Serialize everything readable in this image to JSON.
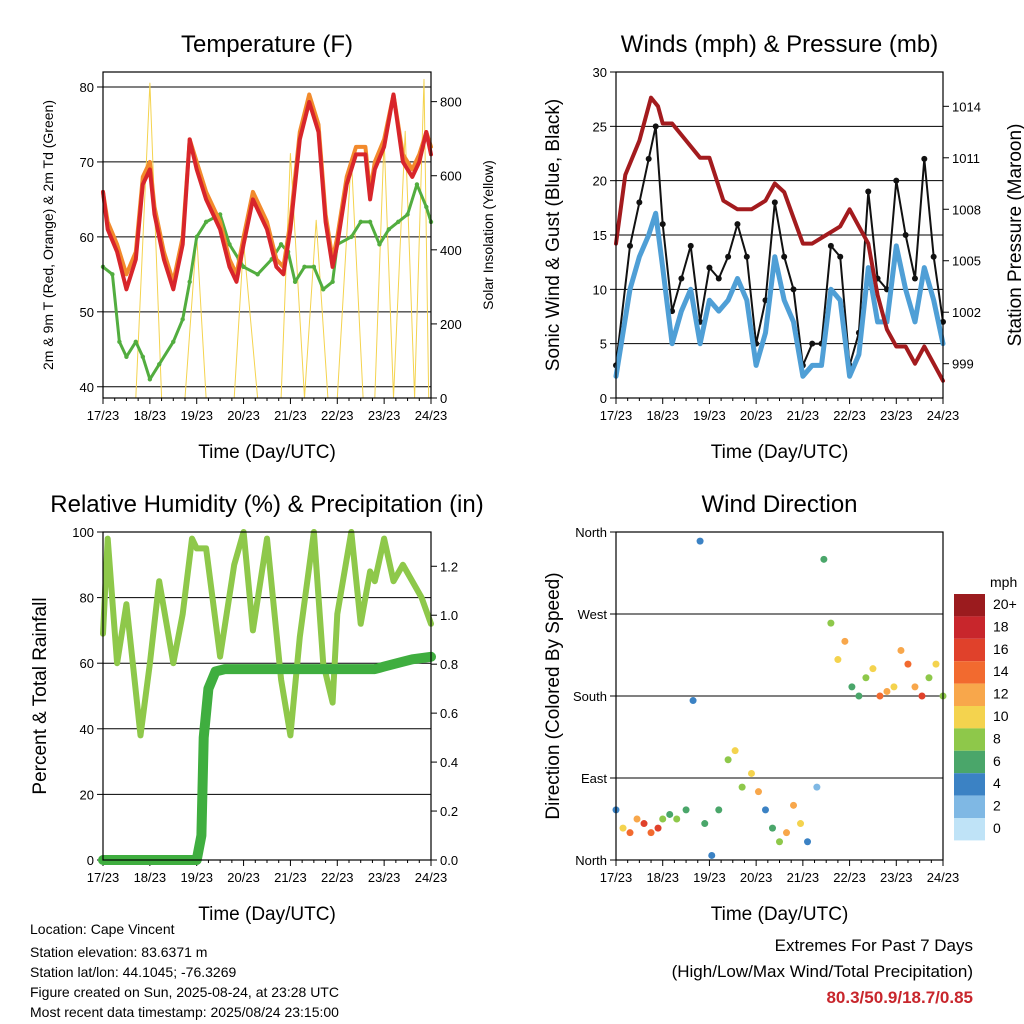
{
  "x_ticks": [
    "17/23",
    "18/23",
    "19/23",
    "20/23",
    "21/23",
    "22/23",
    "23/23",
    "24/23"
  ],
  "chart_data": [
    {
      "type": "line",
      "title": "Temperature (F)",
      "xlabel": "Time (Day/UTC)",
      "ylabel": "2m & 9m T (Red, Orange) & 2m Td (Green)",
      "y2label": "Solar Insolation (Yellow)",
      "x_range_days": [
        0,
        7
      ],
      "ylim": [
        38.5,
        82
      ],
      "yticks": [
        40,
        50,
        60,
        70,
        80
      ],
      "y2lim": [
        0,
        880
      ],
      "y2ticks": [
        0,
        200,
        400,
        600,
        800
      ],
      "colors": {
        "t2m": "#d8252b",
        "t9m": "#f28a2c",
        "td": "#52ad3f",
        "solar": "#f4d34e"
      },
      "series": [
        {
          "key": "t9m",
          "axis": "left",
          "x": [
            0,
            0.1,
            0.3,
            0.5,
            0.7,
            0.85,
            1.0,
            1.1,
            1.3,
            1.5,
            1.7,
            1.85,
            2.0,
            2.2,
            2.5,
            2.7,
            2.85,
            3.0,
            3.2,
            3.5,
            3.7,
            3.85,
            4.0,
            4.2,
            4.4,
            4.6,
            4.75,
            4.9,
            5.0,
            5.2,
            5.4,
            5.6,
            5.7,
            5.8,
            6.0,
            6.2,
            6.4,
            6.6,
            6.75,
            6.9,
            7.0
          ],
          "values": [
            66,
            62,
            59,
            55,
            58,
            68,
            70,
            64,
            58,
            54,
            60,
            73,
            70,
            66,
            62,
            57,
            55,
            60,
            66,
            62,
            57,
            56,
            62,
            74,
            79,
            75,
            63,
            57,
            60,
            68,
            72,
            72,
            66,
            70,
            73,
            79,
            71,
            69,
            71,
            74,
            72
          ]
        },
        {
          "key": "t2m",
          "axis": "left",
          "x": [
            0,
            0.1,
            0.3,
            0.5,
            0.7,
            0.85,
            1.0,
            1.1,
            1.3,
            1.5,
            1.7,
            1.85,
            2.0,
            2.2,
            2.5,
            2.7,
            2.85,
            3.0,
            3.2,
            3.5,
            3.7,
            3.85,
            4.0,
            4.2,
            4.4,
            4.6,
            4.75,
            4.9,
            5.0,
            5.2,
            5.4,
            5.6,
            5.7,
            5.8,
            6.0,
            6.2,
            6.4,
            6.6,
            6.75,
            6.9,
            7.0
          ],
          "values": [
            66,
            61,
            58,
            53,
            57,
            67,
            69,
            63,
            57,
            53,
            59,
            73,
            69,
            65,
            61,
            56,
            54,
            59,
            65,
            61,
            56,
            55,
            61,
            73,
            78,
            74,
            62,
            56,
            59,
            67,
            71,
            71,
            65,
            69,
            72,
            79,
            70,
            68,
            70,
            74,
            71
          ]
        },
        {
          "key": "td",
          "axis": "left",
          "x": [
            0,
            0.2,
            0.35,
            0.5,
            0.7,
            0.85,
            1.0,
            1.2,
            1.5,
            1.7,
            1.85,
            2.0,
            2.2,
            2.5,
            2.7,
            2.9,
            3.0,
            3.3,
            3.6,
            3.8,
            3.95,
            4.1,
            4.3,
            4.5,
            4.7,
            4.9,
            5.0,
            5.3,
            5.5,
            5.7,
            5.9,
            6.1,
            6.3,
            6.5,
            6.7,
            6.9,
            7.0
          ],
          "values": [
            56,
            55,
            46,
            44,
            46,
            44,
            41,
            43,
            46,
            49,
            54,
            60,
            62,
            63,
            59,
            57,
            56,
            55,
            57,
            59,
            58,
            54,
            56,
            56,
            53,
            54,
            59,
            60,
            62,
            62,
            59,
            61,
            62,
            63,
            67,
            64,
            62
          ]
        },
        {
          "key": "solar",
          "axis": "right",
          "x": [
            0,
            0.7,
            1.0,
            1.25,
            1.5,
            1.75,
            2.0,
            2.2,
            2.5,
            2.8,
            3.0,
            3.3,
            3.5,
            3.8,
            4.0,
            4.3,
            4.55,
            4.8,
            5.0,
            5.3,
            5.55,
            5.8,
            6.0,
            6.2,
            6.45,
            6.65,
            6.85,
            6.95,
            7.0
          ],
          "values": [
            0,
            0,
            850,
            0,
            0,
            0,
            440,
            0,
            0,
            0,
            420,
            0,
            0,
            0,
            660,
            0,
            480,
            0,
            0,
            650,
            0,
            0,
            700,
            0,
            720,
            0,
            860,
            0,
            0
          ]
        }
      ]
    },
    {
      "type": "line",
      "title": "Winds (mph) & Pressure (mb)",
      "xlabel": "Time (Day/UTC)",
      "ylabel": "Sonic Wind & Gust (Blue, Black)",
      "y2label": "Station Pressure (Maroon)",
      "x_range_days": [
        0,
        7
      ],
      "ylim": [
        0,
        30
      ],
      "yticks": [
        0,
        5,
        10,
        15,
        20,
        25,
        30
      ],
      "y2lim": [
        997,
        1016
      ],
      "y2ticks": [
        999,
        1002,
        1005,
        1008,
        1011,
        1014
      ],
      "colors": {
        "wind": "#4f9fd6",
        "gust": "#111111",
        "pressure": "#a31b1e"
      },
      "series": [
        {
          "key": "wind",
          "axis": "left",
          "x": [
            0,
            0.3,
            0.5,
            0.7,
            0.85,
            1.0,
            1.2,
            1.4,
            1.6,
            1.8,
            2.0,
            2.2,
            2.4,
            2.6,
            2.8,
            3.0,
            3.2,
            3.4,
            3.6,
            3.8,
            4.0,
            4.2,
            4.4,
            4.6,
            4.8,
            5.0,
            5.2,
            5.4,
            5.6,
            5.8,
            6.0,
            6.2,
            6.4,
            6.6,
            6.8,
            7.0
          ],
          "values": [
            2,
            10,
            13,
            15,
            17,
            12,
            5,
            8,
            10,
            5,
            9,
            8,
            9,
            11,
            9,
            3,
            6,
            13,
            9,
            7,
            2,
            3,
            3,
            10,
            9,
            2,
            4,
            12,
            7,
            7,
            14,
            10,
            7,
            12,
            9,
            5
          ]
        },
        {
          "key": "gust",
          "axis": "left",
          "x": [
            0,
            0.3,
            0.5,
            0.7,
            0.85,
            1.0,
            1.2,
            1.4,
            1.6,
            1.8,
            2.0,
            2.2,
            2.4,
            2.6,
            2.8,
            3.0,
            3.2,
            3.4,
            3.6,
            3.8,
            4.0,
            4.2,
            4.4,
            4.6,
            4.8,
            5.0,
            5.2,
            5.4,
            5.6,
            5.8,
            6.0,
            6.2,
            6.4,
            6.6,
            6.8,
            7.0
          ],
          "values": [
            3,
            14,
            18,
            22,
            25,
            16,
            8,
            11,
            14,
            7,
            12,
            11,
            13,
            16,
            13,
            5,
            9,
            18,
            13,
            10,
            3,
            5,
            5,
            14,
            13,
            3,
            6,
            19,
            11,
            10,
            20,
            15,
            11,
            22,
            13,
            7
          ]
        },
        {
          "key": "pressure",
          "axis": "right",
          "x": [
            0,
            0.2,
            0.5,
            0.75,
            0.9,
            1.0,
            1.2,
            1.5,
            1.8,
            2.0,
            2.3,
            2.6,
            2.9,
            3.2,
            3.4,
            3.6,
            3.8,
            4.0,
            4.2,
            4.5,
            4.8,
            5.0,
            5.2,
            5.4,
            5.6,
            5.8,
            6.0,
            6.2,
            6.4,
            6.6,
            6.8,
            7.0
          ],
          "values": [
            1006,
            1010,
            1012,
            1014.5,
            1014,
            1013,
            1013,
            1012,
            1011,
            1011,
            1008.5,
            1008,
            1008,
            1008.5,
            1009.5,
            1009,
            1007.5,
            1006,
            1006,
            1006.5,
            1007,
            1008,
            1007,
            1006,
            1003,
            1001,
            1000,
            1000,
            999,
            1000,
            999,
            998
          ]
        }
      ]
    },
    {
      "type": "line",
      "title": "Relative Humidity (%) & Precipitation (in)",
      "xlabel": "Time (Day/UTC)",
      "ylabel": "Percent & Total Rainfall",
      "x_range_days": [
        0,
        7
      ],
      "ylim": [
        0,
        100
      ],
      "yticks": [
        0,
        20,
        40,
        60,
        80,
        100
      ],
      "y2lim": [
        0,
        1.34
      ],
      "y2ticks": [
        0.0,
        0.2,
        0.4,
        0.6,
        0.8,
        1.0,
        1.2
      ],
      "colors": {
        "rh": "#8ec84a",
        "precip": "#3fae3f"
      },
      "series": [
        {
          "key": "rh",
          "axis": "left",
          "x": [
            0,
            0.1,
            0.3,
            0.5,
            0.65,
            0.8,
            1.0,
            1.2,
            1.5,
            1.7,
            1.9,
            2.0,
            2.2,
            2.5,
            2.8,
            3.0,
            3.2,
            3.5,
            3.8,
            4.0,
            4.2,
            4.5,
            4.7,
            4.9,
            5.0,
            5.3,
            5.5,
            5.7,
            5.8,
            6.0,
            6.2,
            6.4,
            6.6,
            6.8,
            7.0
          ],
          "values": [
            69,
            98,
            60,
            78,
            58,
            38,
            60,
            85,
            60,
            75,
            98,
            95,
            95,
            62,
            90,
            100,
            70,
            98,
            55,
            38,
            68,
            100,
            60,
            48,
            75,
            100,
            72,
            88,
            85,
            98,
            85,
            90,
            85,
            80,
            72
          ]
        },
        {
          "key": "precip",
          "axis": "right",
          "x": [
            0,
            1.5,
            2.0,
            2.1,
            2.15,
            2.25,
            2.4,
            2.6,
            3.0,
            4.0,
            5.0,
            5.6,
            5.8,
            6.0,
            6.4,
            6.6,
            7.0
          ],
          "values": [
            0,
            0,
            0,
            0.1,
            0.5,
            0.7,
            0.77,
            0.78,
            0.78,
            0.78,
            0.78,
            0.78,
            0.78,
            0.79,
            0.81,
            0.82,
            0.83
          ]
        }
      ]
    },
    {
      "type": "scatter",
      "title": "Wind Direction",
      "xlabel": "Time (Day/UTC)",
      "ylabel": "Direction (Colored By Speed)",
      "x_range_days": [
        0,
        7
      ],
      "ylim": [
        0,
        360
      ],
      "ytick_labels": [
        "North",
        "East",
        "South",
        "West",
        "North"
      ],
      "ytick_values": [
        0,
        90,
        180,
        270,
        360
      ],
      "colorbar": {
        "title": "mph",
        "labels": [
          "20+",
          "18",
          "16",
          "14",
          "12",
          "10",
          "8",
          "6",
          "4",
          "2",
          "0"
        ],
        "colors": [
          "#9b1b1e",
          "#c8262c",
          "#e0412b",
          "#f26a2f",
          "#f8a74b",
          "#f4d34e",
          "#8ec84a",
          "#4aa66a",
          "#3b82c4",
          "#7fb8e4",
          "#bfe3f7"
        ]
      },
      "series": [
        {
          "name": "direction",
          "x": [
            0.0,
            0.15,
            0.3,
            0.45,
            0.6,
            0.75,
            0.9,
            1.0,
            1.15,
            1.3,
            1.5,
            1.65,
            1.8,
            1.9,
            2.05,
            2.2,
            2.4,
            2.55,
            2.7,
            2.9,
            3.05,
            3.2,
            3.35,
            3.5,
            3.65,
            3.8,
            3.95,
            4.1,
            4.3,
            4.45,
            4.6,
            4.75,
            4.9,
            5.05,
            5.2,
            5.35,
            5.5,
            5.65,
            5.8,
            5.95,
            6.1,
            6.25,
            6.4,
            6.55,
            6.7,
            6.85,
            7.0
          ],
          "values": [
            55,
            35,
            30,
            45,
            40,
            30,
            35,
            45,
            50,
            45,
            55,
            175,
            350,
            40,
            5,
            55,
            110,
            120,
            80,
            95,
            75,
            55,
            35,
            20,
            30,
            60,
            40,
            20,
            80,
            330,
            260,
            220,
            240,
            190,
            180,
            200,
            210,
            180,
            185,
            190,
            230,
            215,
            190,
            180,
            200,
            215,
            180
          ],
          "speed": [
            3,
            10,
            14,
            12,
            16,
            13,
            15,
            8,
            6,
            7,
            5,
            4,
            3,
            5,
            4,
            6,
            8,
            9,
            7,
            10,
            11,
            4,
            5,
            7,
            12,
            11,
            9,
            3,
            2,
            5,
            8,
            10,
            11,
            6,
            5,
            8,
            9,
            14,
            12,
            10,
            11,
            13,
            12,
            15,
            8,
            10,
            7
          ]
        }
      ]
    }
  ],
  "info": {
    "location": "Location: Cape Vincent",
    "elevation": "Station elevation: 83.6371 m",
    "latlon": "Station lat/lon: 44.1045; -76.3269",
    "created": "Figure created on Sun, 2025-08-24, at 23:28 UTC",
    "recent": "Most recent data timestamp: 2025/08/24 23:15:00"
  },
  "extremes": {
    "title": "Extremes For Past 7 Days",
    "subtitle": "(High/Low/Max Wind/Total Precipitation)",
    "values": "80.3/50.9/18.7/0.85"
  }
}
